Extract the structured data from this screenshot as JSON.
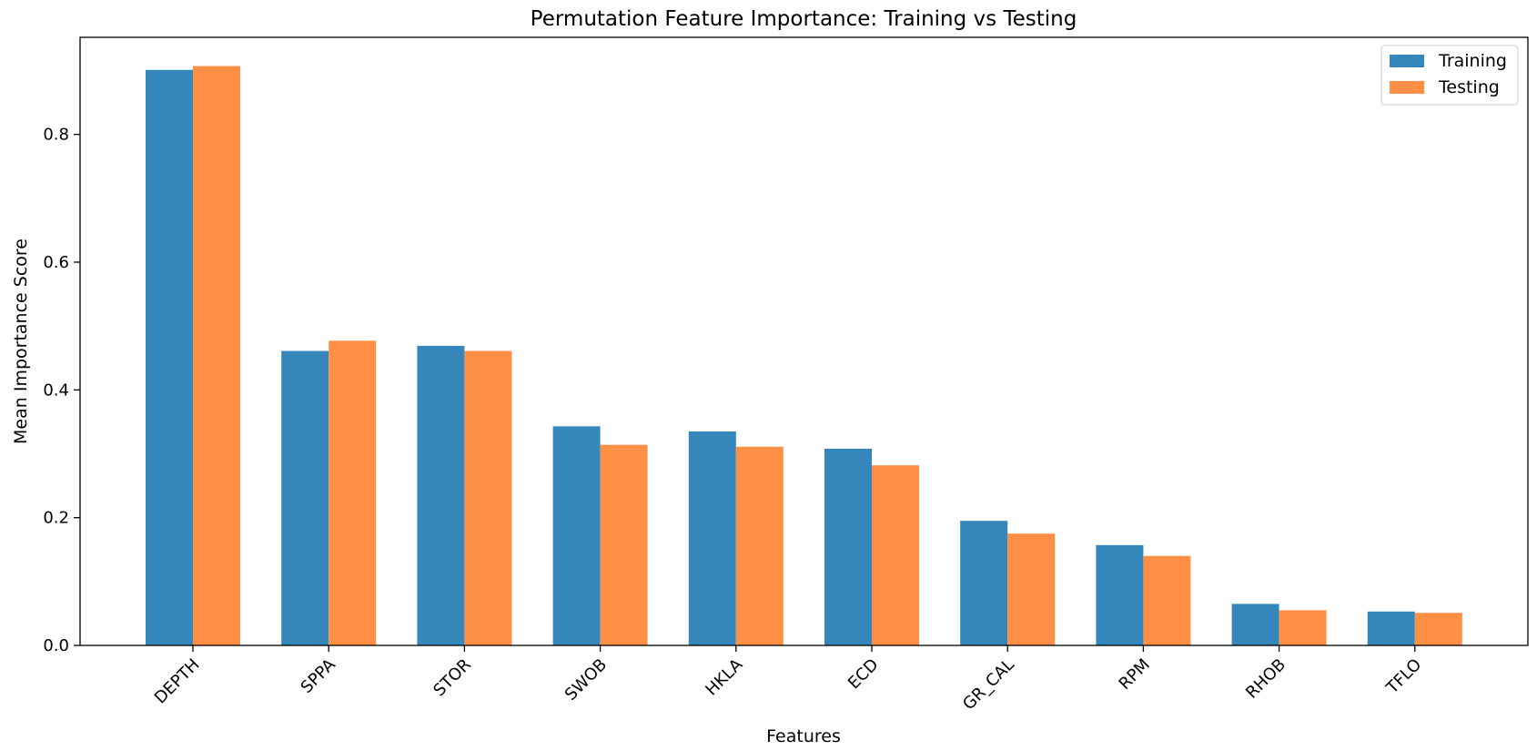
{
  "chart_data": {
    "type": "bar",
    "title": "Permutation Feature Importance: Training vs Testing",
    "xlabel": "Features",
    "ylabel": "Mean Importance Score",
    "categories": [
      "DEPTH",
      "SPPA",
      "STOR",
      "SWOB",
      "HKLA",
      "ECD",
      "GR_CAL",
      "RPM",
      "RHOB",
      "TFLO"
    ],
    "series": [
      {
        "name": "Training",
        "color": "#3587bb",
        "values": [
          0.901,
          0.461,
          0.469,
          0.343,
          0.335,
          0.308,
          0.195,
          0.157,
          0.065,
          0.053
        ]
      },
      {
        "name": "Testing",
        "color": "#ff8f45",
        "values": [
          0.907,
          0.477,
          0.461,
          0.314,
          0.311,
          0.282,
          0.175,
          0.14,
          0.055,
          0.051
        ]
      }
    ],
    "ylim": [
      0,
      0.952
    ],
    "yticks": [
      0.0,
      0.2,
      0.4,
      0.6,
      0.8
    ],
    "ytick_labels": [
      "0.0",
      "0.2",
      "0.4",
      "0.6",
      "0.8"
    ],
    "grid": false,
    "legend_position": "top-right"
  }
}
